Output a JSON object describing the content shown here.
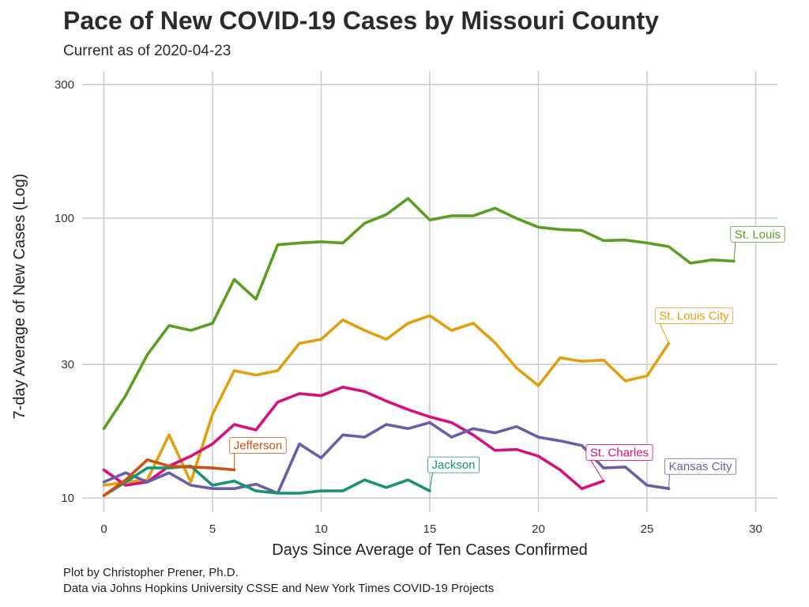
{
  "title": "Pace of New COVID-19 Cases by Missouri County",
  "subtitle": "Current as of 2020-04-23",
  "captions": [
    "Plot by Christopher Prener, Ph.D.",
    "Data via Johns Hopkins University CSSE and New York Times COVID-19 Projects"
  ],
  "chart_data": {
    "type": "line",
    "title": "Pace of New COVID-19 Cases by Missouri County",
    "subtitle": "Current as of 2020-04-23",
    "xlabel": "Days Since Average of Ten Cases Confirmed",
    "ylabel": "7-day Average of New Cases (Log)",
    "xlim": [
      -1,
      31
    ],
    "ylim": [
      8.9,
      335
    ],
    "yscale": "log",
    "grid": true,
    "legend": "direct labels at line ends",
    "x_ticks": [
      0,
      5,
      10,
      15,
      20,
      25,
      30
    ],
    "x_tick_labels": [
      "0",
      "5",
      "10",
      "15",
      "20",
      "25",
      "30"
    ],
    "y_ticks": [
      10,
      30,
      100,
      300
    ],
    "y_tick_labels": [
      "10",
      "30",
      "100",
      "300"
    ],
    "series": [
      {
        "name": "St. Louis",
        "color": "#5a9e22",
        "x": [
          0,
          1,
          2,
          3,
          4,
          5,
          6,
          7,
          8,
          9,
          10,
          11,
          12,
          13,
          14,
          15,
          16,
          17,
          18,
          19,
          20,
          21,
          22,
          23,
          24,
          25,
          26,
          27,
          28,
          29
        ],
        "y": [
          17.7,
          23.2,
          32.5,
          41.3,
          39.7,
          42.1,
          60.4,
          51.3,
          80.3,
          81.5,
          82.3,
          81.5,
          95.9,
          103.0,
          117.5,
          98.4,
          101.9,
          101.9,
          108.5,
          99.7,
          92.8,
          91.0,
          90.3,
          83.1,
          83.5,
          81.5,
          79.1,
          69.0,
          70.9,
          70.2
        ]
      },
      {
        "name": "St. Louis City",
        "color": "#e0a110",
        "x": [
          0,
          1,
          2,
          3,
          4,
          5,
          6,
          7,
          8,
          9,
          10,
          11,
          12,
          13,
          14,
          15,
          16,
          17,
          18,
          19,
          20,
          21,
          22,
          23,
          24,
          25,
          26
        ],
        "y": [
          11.1,
          11.4,
          11.6,
          16.8,
          11.4,
          19.9,
          28.5,
          27.5,
          28.5,
          35.7,
          36.9,
          43.3,
          39.7,
          36.9,
          42.1,
          44.8,
          39.7,
          42.1,
          35.9,
          29.1,
          25.2,
          31.7,
          30.8,
          31.1,
          26.2,
          27.3,
          35.7
        ]
      },
      {
        "name": "St. Charles",
        "color": "#d6117e",
        "x": [
          0,
          1,
          2,
          3,
          4,
          5,
          6,
          7,
          8,
          9,
          10,
          11,
          12,
          13,
          14,
          15,
          16,
          17,
          18,
          19,
          20,
          21,
          22,
          23
        ],
        "y": [
          12.6,
          11.1,
          11.4,
          13.0,
          14.1,
          15.6,
          18.3,
          17.5,
          22.0,
          23.6,
          23.2,
          24.9,
          24.0,
          22.2,
          20.7,
          19.5,
          18.6,
          16.8,
          14.8,
          14.9,
          14.1,
          12.6,
          10.8,
          11.5
        ]
      },
      {
        "name": "Kansas City",
        "color": "#6b5ea8",
        "x": [
          0,
          1,
          2,
          3,
          4,
          5,
          6,
          7,
          8,
          9,
          10,
          11,
          12,
          13,
          14,
          15,
          16,
          17,
          18,
          19,
          20,
          21,
          22,
          23,
          24,
          25,
          26
        ],
        "y": [
          11.4,
          12.3,
          11.4,
          12.3,
          11.1,
          10.8,
          10.8,
          11.2,
          10.4,
          15.6,
          13.9,
          16.8,
          16.5,
          18.3,
          17.7,
          18.6,
          16.5,
          17.7,
          17.1,
          18.0,
          16.5,
          16.0,
          15.4,
          12.8,
          12.9,
          11.1,
          10.8
        ]
      },
      {
        "name": "Jackson",
        "color": "#1a9470",
        "x": [
          0,
          1,
          2,
          3,
          4,
          5,
          6,
          7,
          8,
          9,
          10,
          11,
          12,
          13,
          14,
          15
        ],
        "y": [
          10.2,
          11.4,
          12.8,
          12.8,
          13.0,
          11.1,
          11.5,
          10.6,
          10.4,
          10.4,
          10.6,
          10.6,
          11.6,
          10.9,
          11.6,
          10.6
        ]
      },
      {
        "name": "Jefferson",
        "color": "#cc5210",
        "x": [
          0,
          1,
          2,
          3,
          4,
          5,
          6
        ],
        "y": [
          10.2,
          11.6,
          13.7,
          13.0,
          12.9,
          12.8,
          12.6
        ]
      }
    ]
  }
}
